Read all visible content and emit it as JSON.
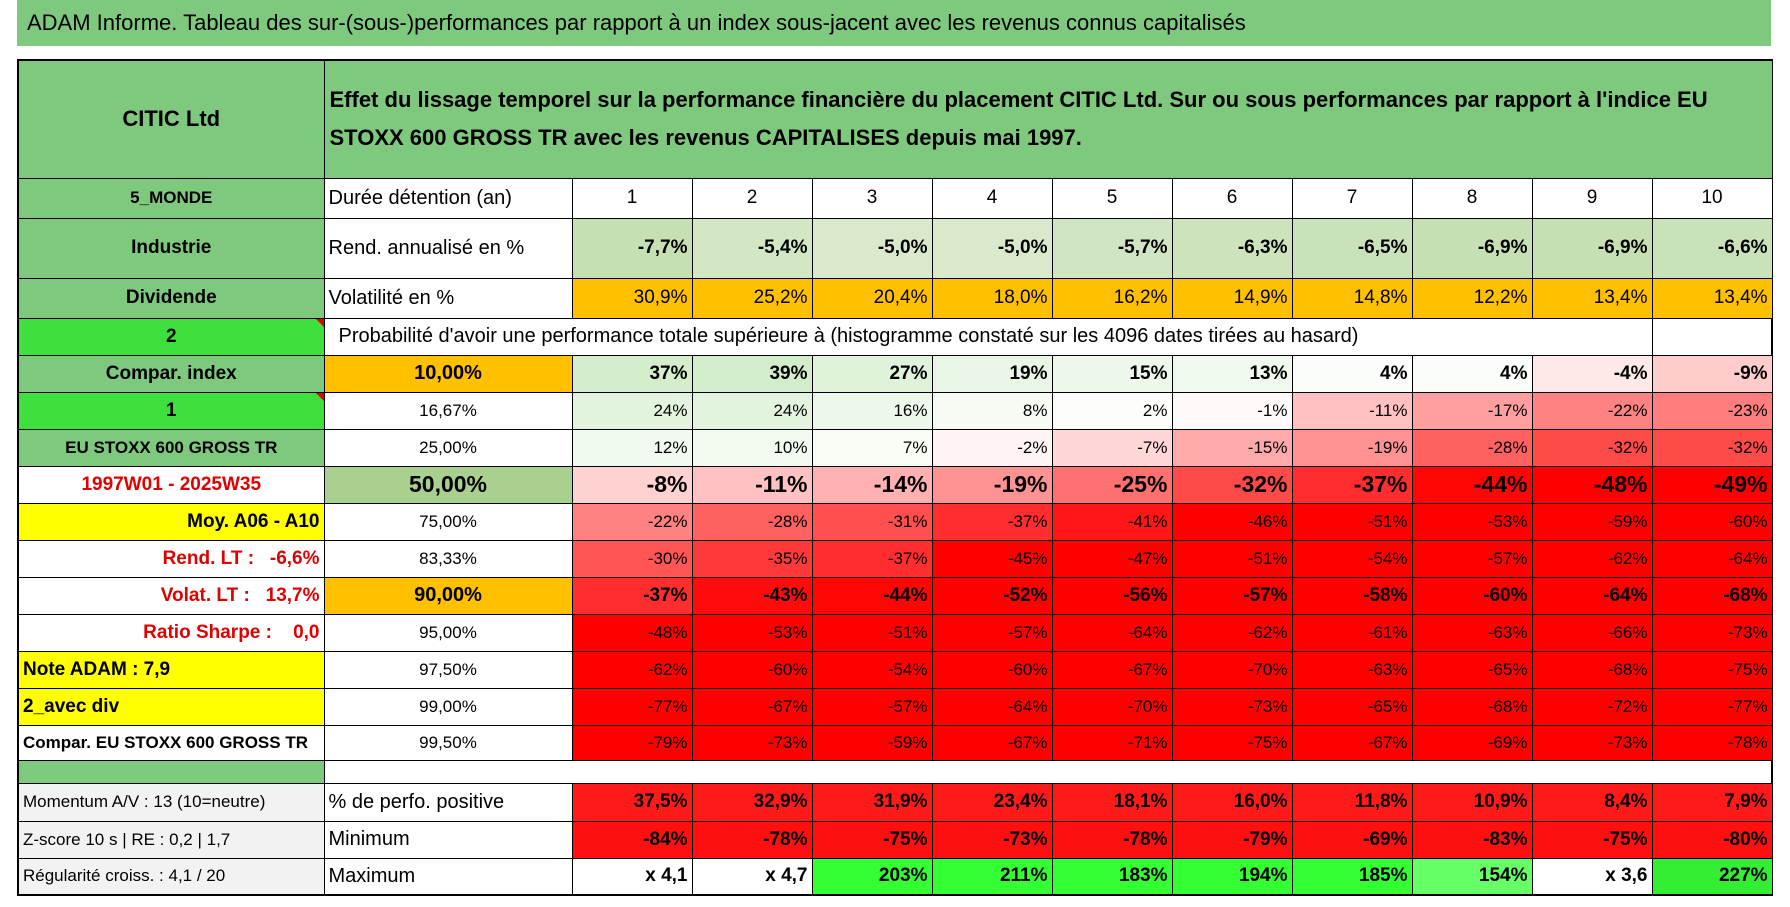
{
  "header": {
    "title": "ADAM Informe. Tableau des sur-(sous-)performances par rapport à un index sous-jacent avec les revenus connus capitalisés"
  },
  "table": {
    "corner": "CITIC Ltd",
    "description": "Effet du lissage temporel sur la performance financière du placement CITIC Ltd. Sur ou sous performances par rapport à l'indice EU STOXX 600 GROSS TR avec les revenus CAPITALISES depuis mai 1997.",
    "rows": [
      [
        "5_MONDE",
        "Durée détention (an)",
        "1",
        "2",
        "3",
        "4",
        "5",
        "6",
        "7",
        "8",
        "9",
        "10"
      ],
      [
        "Industrie",
        "Rend. annualisé en %",
        "-7,7%",
        "-5,4%",
        "-5,0%",
        "-5,0%",
        "-5,7%",
        "-6,3%",
        "-6,5%",
        "-6,9%",
        "-6,9%",
        "-6,6%"
      ],
      [
        "Dividende",
        "Volatilité en %",
        "30,9%",
        "25,2%",
        "20,4%",
        "18,0%",
        "16,2%",
        "14,9%",
        "14,8%",
        "12,2%",
        "13,4%",
        "13,4%"
      ],
      [
        "2",
        "Probabilité d'avoir une performance totale supérieure à (histogramme constaté sur les 4096 dates tirées au hasard)"
      ],
      [
        "Compar. index",
        "10,00%",
        "37%",
        "39%",
        "27%",
        "19%",
        "15%",
        "13%",
        "4%",
        "4%",
        "-4%",
        "-9%"
      ],
      [
        "1",
        "16,67%",
        "24%",
        "24%",
        "16%",
        "8%",
        "2%",
        "-1%",
        "-11%",
        "-17%",
        "-22%",
        "-23%"
      ],
      [
        "EU STOXX 600 GROSS TR",
        "25,00%",
        "12%",
        "10%",
        "7%",
        "-2%",
        "-7%",
        "-15%",
        "-19%",
        "-28%",
        "-32%",
        "-32%"
      ],
      [
        "1997W01 - 2025W35",
        "50,00%",
        "-8%",
        "-11%",
        "-14%",
        "-19%",
        "-25%",
        "-32%",
        "-37%",
        "-44%",
        "-48%",
        "-49%"
      ],
      [
        "Moy. A06 - A10",
        "75,00%",
        "-22%",
        "-28%",
        "-31%",
        "-37%",
        "-41%",
        "-46%",
        "-51%",
        "-53%",
        "-59%",
        "-60%"
      ],
      [
        "Rend. LT :   -6,6%",
        "83,33%",
        "-30%",
        "-35%",
        "-37%",
        "-45%",
        "-47%",
        "-51%",
        "-54%",
        "-57%",
        "-62%",
        "-64%"
      ],
      [
        "Volat. LT :   13,7%",
        "90,00%",
        "-37%",
        "-43%",
        "-44%",
        "-52%",
        "-56%",
        "-57%",
        "-58%",
        "-60%",
        "-64%",
        "-68%"
      ],
      [
        "Ratio Sharpe :    0,0",
        "95,00%",
        "-48%",
        "-53%",
        "-51%",
        "-57%",
        "-64%",
        "-62%",
        "-61%",
        "-63%",
        "-66%",
        "-73%"
      ],
      [
        "Note ADAM : 7,9",
        "97,50%",
        "-62%",
        "-60%",
        "-54%",
        "-60%",
        "-67%",
        "-70%",
        "-63%",
        "-65%",
        "-68%",
        "-75%"
      ],
      [
        "2_avec div",
        "99,00%",
        "-77%",
        "-67%",
        "-57%",
        "-64%",
        "-70%",
        "-73%",
        "-65%",
        "-68%",
        "-72%",
        "-77%"
      ],
      [
        "Compar. EU STOXX 600 GROSS TR",
        "99,50%",
        "-79%",
        "-73%",
        "-59%",
        "-67%",
        "-71%",
        "-75%",
        "-67%",
        "-69%",
        "-73%",
        "-78%"
      ],
      [
        "Momentum A/V : 13 (10=neutre)",
        "% de perfo. positive",
        "37,5%",
        "32,9%",
        "31,9%",
        "23,4%",
        "18,1%",
        "16,0%",
        "11,8%",
        "10,9%",
        "8,4%",
        "7,9%"
      ],
      [
        "Z-score 10 s | RE : 0,2 | 1,7",
        "Minimum",
        "-84%",
        "-78%",
        "-75%",
        "-73%",
        "-78%",
        "-79%",
        "-69%",
        "-83%",
        "-75%",
        "-80%"
      ],
      [
        "Régularité croiss. : 4,1 / 20",
        "Maximum",
        "x 4,1",
        "x 4,7",
        "203%",
        "211%",
        "183%",
        "194%",
        "185%",
        "154%",
        "x 3,6",
        "227%"
      ]
    ]
  }
}
